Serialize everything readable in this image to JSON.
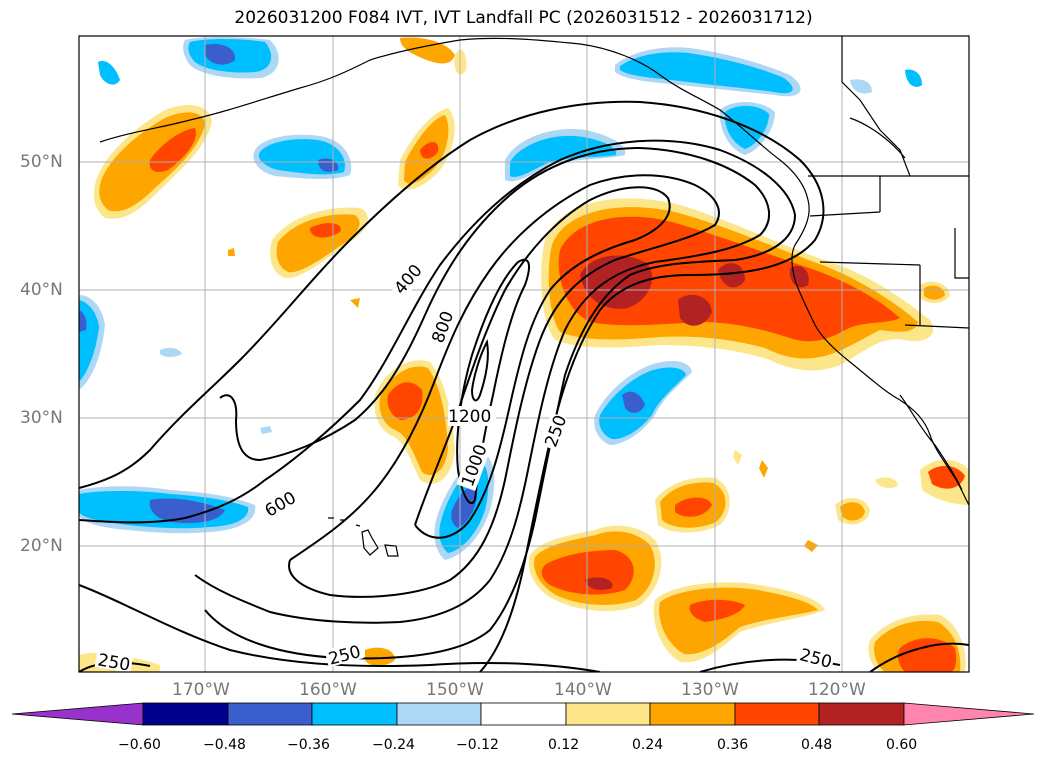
{
  "title": "2026031200 F084 IVT, IVT Landfall PC (2026031512 - 2026031712)",
  "axes": {
    "lat_labels": [
      "50°N",
      "40°N",
      "30°N",
      "20°N"
    ],
    "lon_labels": [
      "170°W",
      "160°W",
      "150°W",
      "140°W",
      "130°W",
      "120°W"
    ]
  },
  "contour_labels": [
    "400",
    "800",
    "1200",
    "1000",
    "600",
    "250",
    "250",
    "250",
    "250"
  ],
  "colorbar": {
    "ticks": [
      "−0.60",
      "−0.48",
      "−0.36",
      "−0.24",
      "−0.12",
      "0.12",
      "0.24",
      "0.36",
      "0.48",
      "0.60"
    ],
    "colors": [
      "#9932cc",
      "#00008b",
      "#3a5fcd",
      "#00bfff",
      "#add8f5",
      "#ffffff",
      "#fde68a",
      "#ffa500",
      "#ff4500",
      "#b22222",
      "#ff85ad"
    ]
  },
  "colors": {
    "grid": "#b0b0b0",
    "coast": "#000000",
    "contour": "#000000",
    "neg_light": "#add8f5",
    "neg_mid": "#00bfff",
    "neg_dark": "#3a5fcd",
    "pos_light": "#fde68a",
    "pos_mid": "#ffa500",
    "pos_high": "#ff4500",
    "pos_dark": "#b22222"
  }
}
